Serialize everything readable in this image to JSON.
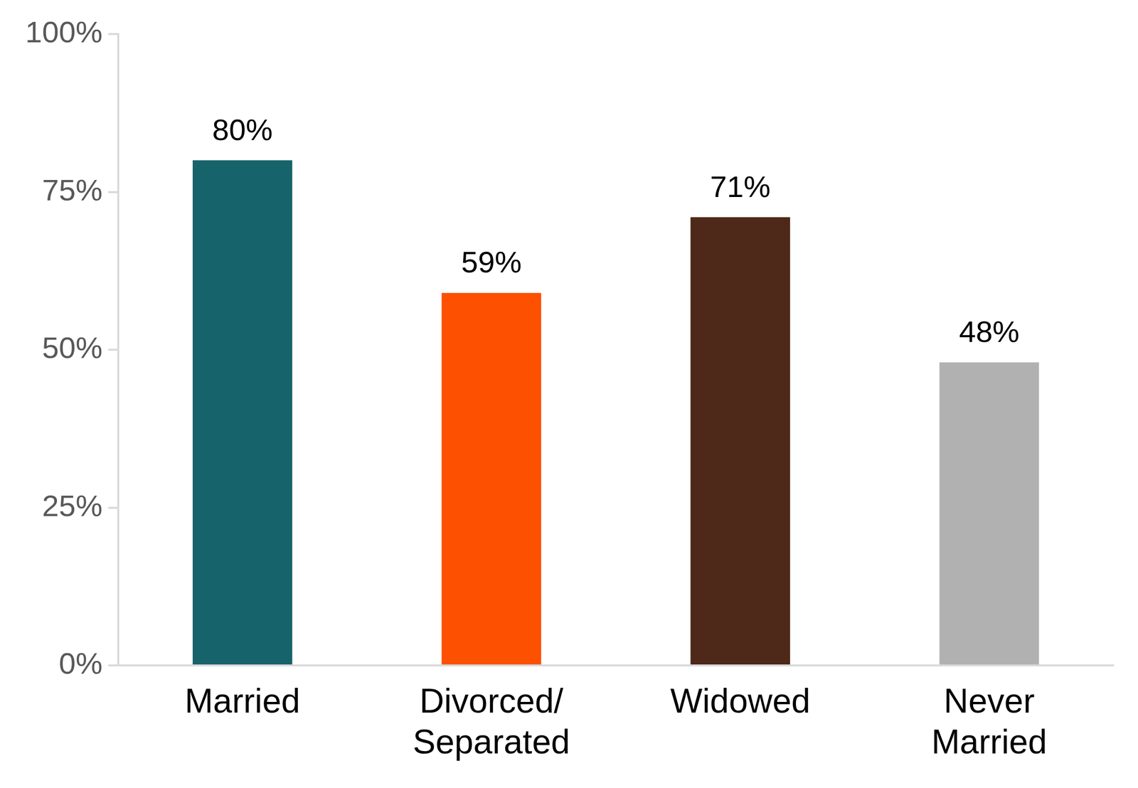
{
  "chart_data": {
    "type": "bar",
    "categories": [
      "Married",
      "Divorced/Separated",
      "Widowed",
      "Never Married"
    ],
    "values": [
      80,
      59,
      71,
      48
    ],
    "value_labels": [
      "80%",
      "59%",
      "71%",
      "48%"
    ],
    "colors": [
      "#17636b",
      "#fd5001",
      "#4e2818",
      "#b1b1b1"
    ],
    "ylim": [
      0,
      100
    ],
    "yticks": [
      {
        "value": 0,
        "label": "0%"
      },
      {
        "value": 25,
        "label": "25%"
      },
      {
        "value": 50,
        "label": "50%"
      },
      {
        "value": 75,
        "label": "75%"
      },
      {
        "value": 100,
        "label": "100%"
      }
    ],
    "grid": false,
    "data_labels": true
  }
}
